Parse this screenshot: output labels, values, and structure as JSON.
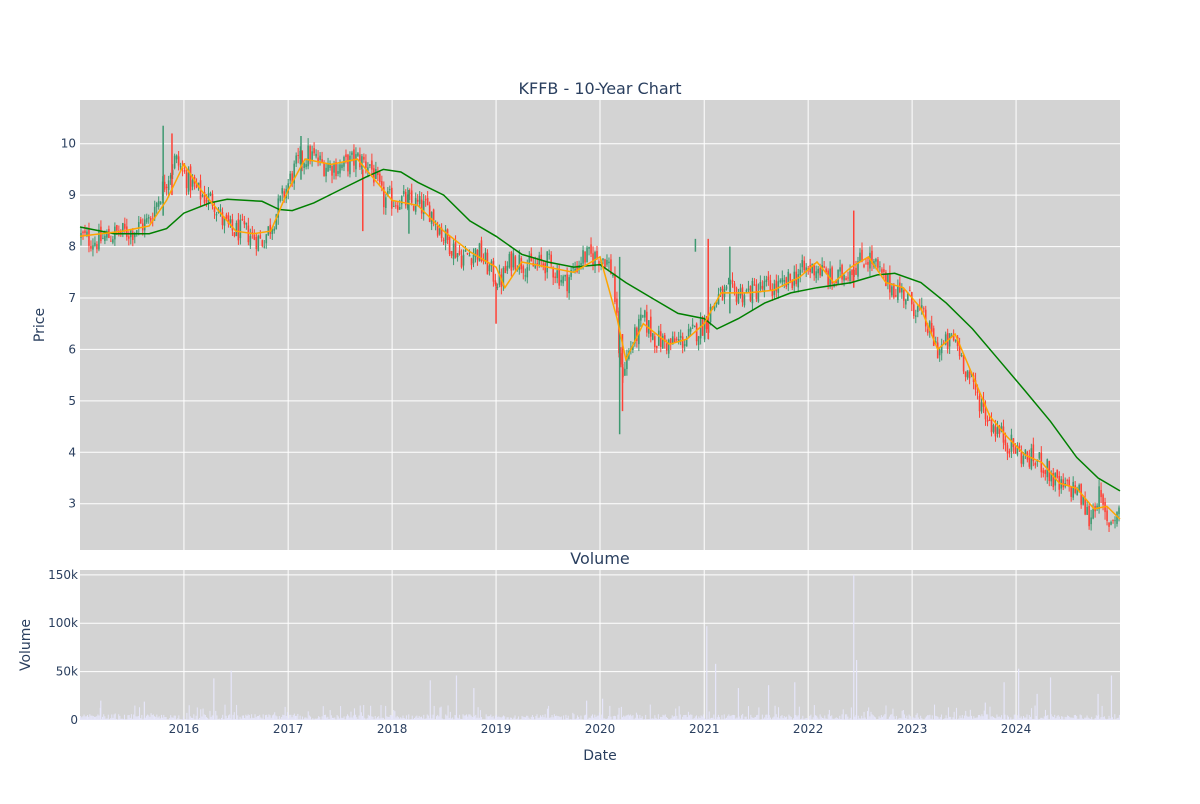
{
  "chart_data": [
    {
      "type": "candlestick",
      "title": "KFFB - 10-Year Chart",
      "ylabel": "Price",
      "xlabel": "",
      "ylim": [
        2.1,
        10.85
      ],
      "y_ticks": [
        3,
        4,
        5,
        6,
        7,
        8,
        9,
        10
      ],
      "x_ticks": [
        "2016",
        "2017",
        "2018",
        "2019",
        "2020",
        "2021",
        "2022",
        "2023",
        "2024"
      ],
      "xlim": [
        "2015-01-01",
        "2024-12-31"
      ],
      "grid": true,
      "colors": {
        "up": "#3d9970",
        "down": "#ff4136",
        "ma_short": "#ffa500",
        "ma_long": "#008000",
        "plot_bg": "#d3d3d3",
        "grid": "#ffffff"
      },
      "close_path": [
        [
          "2015-01-01",
          8.2
        ],
        [
          "2015-03-01",
          8.1
        ],
        [
          "2015-05-01",
          8.25
        ],
        [
          "2015-07-01",
          8.3
        ],
        [
          "2015-09-01",
          8.5
        ],
        [
          "2015-10-15",
          9.1
        ],
        [
          "2015-12-01",
          9.7
        ],
        [
          "2016-01-15",
          9.3
        ],
        [
          "2016-03-01",
          9.0
        ],
        [
          "2016-04-15",
          8.9
        ],
        [
          "2016-05-15",
          8.5
        ],
        [
          "2016-06-15",
          8.3
        ],
        [
          "2016-08-01",
          8.3
        ],
        [
          "2016-10-01",
          8.1
        ],
        [
          "2016-11-01",
          8.4
        ],
        [
          "2016-12-15",
          9.0
        ],
        [
          "2017-02-01",
          9.6
        ],
        [
          "2017-03-15",
          9.8
        ],
        [
          "2017-05-01",
          9.6
        ],
        [
          "2017-07-01",
          9.55
        ],
        [
          "2017-09-01",
          9.7
        ],
        [
          "2017-10-15",
          9.6
        ],
        [
          "2017-12-01",
          8.9
        ],
        [
          "2018-02-01",
          8.9
        ],
        [
          "2018-04-01",
          8.8
        ],
        [
          "2018-05-15",
          8.7
        ],
        [
          "2018-07-01",
          8.2
        ],
        [
          "2018-09-01",
          7.8
        ],
        [
          "2018-11-01",
          7.9
        ],
        [
          "2018-12-15",
          7.5
        ],
        [
          "2019-01-15",
          7.3
        ],
        [
          "2019-03-01",
          7.8
        ],
        [
          "2019-05-01",
          7.6
        ],
        [
          "2019-07-01",
          7.7
        ],
        [
          "2019-09-01",
          7.3
        ],
        [
          "2019-11-01",
          7.8
        ],
        [
          "2020-01-15",
          7.8
        ],
        [
          "2020-02-15",
          7.5
        ],
        [
          "2020-03-15",
          5.5
        ],
        [
          "2020-04-15",
          6.0
        ],
        [
          "2020-06-01",
          6.6
        ],
        [
          "2020-07-15",
          6.2
        ],
        [
          "2020-09-01",
          6.1
        ],
        [
          "2020-11-01",
          6.2
        ],
        [
          "2021-01-01",
          6.5
        ],
        [
          "2021-02-15",
          7.0
        ],
        [
          "2021-04-01",
          7.1
        ],
        [
          "2021-06-01",
          7.1
        ],
        [
          "2021-08-01",
          7.2
        ],
        [
          "2021-10-01",
          7.2
        ],
        [
          "2021-12-01",
          7.5
        ],
        [
          "2022-02-01",
          7.6
        ],
        [
          "2022-04-01",
          7.3
        ],
        [
          "2022-06-01",
          7.6
        ],
        [
          "2022-08-01",
          7.8
        ],
        [
          "2022-10-01",
          7.3
        ],
        [
          "2022-12-01",
          7.1
        ],
        [
          "2023-02-01",
          6.7
        ],
        [
          "2023-04-01",
          6.0
        ],
        [
          "2023-06-01",
          6.2
        ],
        [
          "2023-08-01",
          5.3
        ],
        [
          "2023-10-01",
          4.6
        ],
        [
          "2023-12-01",
          4.2
        ],
        [
          "2024-02-01",
          3.9
        ],
        [
          "2024-04-01",
          3.8
        ],
        [
          "2024-06-01",
          3.3
        ],
        [
          "2024-08-01",
          3.3
        ],
        [
          "2024-09-15",
          2.7
        ],
        [
          "2024-10-15",
          3.2
        ],
        [
          "2024-11-15",
          2.6
        ],
        [
          "2024-12-31",
          2.9
        ]
      ],
      "ma_short": [
        [
          "2015-01-01",
          8.2
        ],
        [
          "2015-06-01",
          8.3
        ],
        [
          "2015-09-01",
          8.4
        ],
        [
          "2015-11-01",
          8.9
        ],
        [
          "2016-01-01",
          9.6
        ],
        [
          "2016-03-01",
          9.1
        ],
        [
          "2016-05-01",
          8.7
        ],
        [
          "2016-07-01",
          8.3
        ],
        [
          "2016-09-01",
          8.25
        ],
        [
          "2016-11-01",
          8.3
        ],
        [
          "2017-01-01",
          9.1
        ],
        [
          "2017-03-01",
          9.7
        ],
        [
          "2017-06-01",
          9.6
        ],
        [
          "2017-09-01",
          9.7
        ],
        [
          "2017-11-01",
          9.3
        ],
        [
          "2018-01-01",
          8.9
        ],
        [
          "2018-04-01",
          8.8
        ],
        [
          "2018-07-01",
          8.3
        ],
        [
          "2018-10-01",
          7.9
        ],
        [
          "2019-01-01",
          7.6
        ],
        [
          "2019-02-01",
          7.2
        ],
        [
          "2019-04-01",
          7.7
        ],
        [
          "2019-07-01",
          7.6
        ],
        [
          "2019-10-01",
          7.5
        ],
        [
          "2020-01-01",
          7.8
        ],
        [
          "2020-03-01",
          6.6
        ],
        [
          "2020-04-01",
          5.8
        ],
        [
          "2020-06-01",
          6.5
        ],
        [
          "2020-09-01",
          6.1
        ],
        [
          "2020-11-01",
          6.2
        ],
        [
          "2021-01-01",
          6.5
        ],
        [
          "2021-03-01",
          7.1
        ],
        [
          "2021-06-01",
          7.1
        ],
        [
          "2021-09-01",
          7.15
        ],
        [
          "2021-12-01",
          7.4
        ],
        [
          "2022-02-01",
          7.7
        ],
        [
          "2022-04-01",
          7.3
        ],
        [
          "2022-06-01",
          7.6
        ],
        [
          "2022-08-01",
          7.8
        ],
        [
          "2022-10-01",
          7.3
        ],
        [
          "2022-12-01",
          7.2
        ],
        [
          "2023-02-01",
          6.8
        ],
        [
          "2023-04-01",
          6.0
        ],
        [
          "2023-06-01",
          6.3
        ],
        [
          "2023-08-01",
          5.5
        ],
        [
          "2023-10-01",
          4.7
        ],
        [
          "2023-12-01",
          4.3
        ],
        [
          "2024-02-01",
          3.95
        ],
        [
          "2024-04-01",
          3.8
        ],
        [
          "2024-06-01",
          3.4
        ],
        [
          "2024-08-01",
          3.3
        ],
        [
          "2024-10-01",
          2.9
        ],
        [
          "2024-11-15",
          2.95
        ],
        [
          "2024-12-31",
          2.7
        ]
      ],
      "ma_long": [
        [
          "2015-01-01",
          8.38
        ],
        [
          "2015-05-01",
          8.25
        ],
        [
          "2015-09-01",
          8.25
        ],
        [
          "2015-11-01",
          8.35
        ],
        [
          "2016-01-01",
          8.65
        ],
        [
          "2016-04-01",
          8.85
        ],
        [
          "2016-06-01",
          8.92
        ],
        [
          "2016-10-01",
          8.88
        ],
        [
          "2016-12-01",
          8.72
        ],
        [
          "2017-01-15",
          8.7
        ],
        [
          "2017-04-01",
          8.85
        ],
        [
          "2017-07-01",
          9.1
        ],
        [
          "2017-10-01",
          9.35
        ],
        [
          "2017-12-01",
          9.5
        ],
        [
          "2018-02-01",
          9.45
        ],
        [
          "2018-04-01",
          9.25
        ],
        [
          "2018-07-01",
          9.0
        ],
        [
          "2018-10-01",
          8.5
        ],
        [
          "2019-01-01",
          8.2
        ],
        [
          "2019-04-01",
          7.85
        ],
        [
          "2019-07-01",
          7.7
        ],
        [
          "2019-10-01",
          7.6
        ],
        [
          "2020-01-01",
          7.65
        ],
        [
          "2020-04-01",
          7.3
        ],
        [
          "2020-07-01",
          7.0
        ],
        [
          "2020-10-01",
          6.7
        ],
        [
          "2021-01-01",
          6.6
        ],
        [
          "2021-02-15",
          6.4
        ],
        [
          "2021-05-01",
          6.6
        ],
        [
          "2021-08-01",
          6.9
        ],
        [
          "2021-11-01",
          7.1
        ],
        [
          "2022-02-01",
          7.2
        ],
        [
          "2022-06-01",
          7.3
        ],
        [
          "2022-09-01",
          7.45
        ],
        [
          "2022-11-01",
          7.48
        ],
        [
          "2023-02-01",
          7.3
        ],
        [
          "2023-05-01",
          6.9
        ],
        [
          "2023-08-01",
          6.4
        ],
        [
          "2023-11-01",
          5.8
        ],
        [
          "2024-02-01",
          5.2
        ],
        [
          "2024-05-01",
          4.6
        ],
        [
          "2024-08-01",
          3.9
        ],
        [
          "2024-10-15",
          3.5
        ],
        [
          "2024-12-31",
          3.25
        ]
      ],
      "spikes": [
        {
          "date": "2015-10-20",
          "high": 10.35,
          "low": 8.6
        },
        {
          "date": "2015-11-20",
          "high": 10.2,
          "low": 9.0
        },
        {
          "date": "2017-02-15",
          "high": 10.15,
          "low": 9.3
        },
        {
          "date": "2017-09-20",
          "high": 9.5,
          "low": 8.3
        },
        {
          "date": "2018-03-01",
          "high": 9.1,
          "low": 8.25
        },
        {
          "date": "2019-01-01",
          "high": 7.3,
          "low": 6.5
        },
        {
          "date": "2020-03-10",
          "high": 7.8,
          "low": 4.35
        },
        {
          "date": "2020-03-20",
          "high": 6.3,
          "low": 4.8
        },
        {
          "date": "2020-12-01",
          "high": 8.15,
          "low": 7.9
        },
        {
          "date": "2021-01-15",
          "high": 8.15,
          "low": 6.2
        },
        {
          "date": "2021-04-01",
          "high": 8.0,
          "low": 6.7
        },
        {
          "date": "2022-06-10",
          "high": 8.7,
          "low": 7.2
        }
      ]
    },
    {
      "type": "bar",
      "title": "Volume",
      "ylabel": "Volume",
      "xlabel": "Date",
      "ylim": [
        0,
        155000
      ],
      "y_ticks": [
        0,
        50000,
        100000,
        150000
      ],
      "y_tick_labels": [
        "0",
        "50k",
        "100k",
        "150k"
      ],
      "x_ticks": [
        "2016",
        "2017",
        "2018",
        "2019",
        "2020",
        "2021",
        "2022",
        "2023",
        "2024"
      ],
      "grid": true,
      "bar_color": "#e6e6fa",
      "peaks": [
        [
          "2015-03-15",
          20000
        ],
        [
          "2015-08-15",
          19000
        ],
        [
          "2016-04-15",
          43000
        ],
        [
          "2016-06-15",
          51000
        ],
        [
          "2018-05-15",
          41000
        ],
        [
          "2018-08-15",
          46000
        ],
        [
          "2018-10-15",
          33000
        ],
        [
          "2019-11-15",
          20000
        ],
        [
          "2020-01-10",
          22000
        ],
        [
          "2021-01-10",
          97000
        ],
        [
          "2021-02-10",
          58000
        ],
        [
          "2021-05-01",
          33000
        ],
        [
          "2021-08-15",
          36000
        ],
        [
          "2021-11-15",
          39000
        ],
        [
          "2022-06-10",
          150000
        ],
        [
          "2022-06-20",
          62000
        ],
        [
          "2023-09-15",
          18000
        ],
        [
          "2023-11-20",
          39000
        ],
        [
          "2024-01-10",
          53000
        ],
        [
          "2024-03-15",
          27000
        ],
        [
          "2024-05-01",
          44000
        ],
        [
          "2024-10-15",
          27000
        ],
        [
          "2024-12-01",
          46000
        ]
      ]
    }
  ]
}
